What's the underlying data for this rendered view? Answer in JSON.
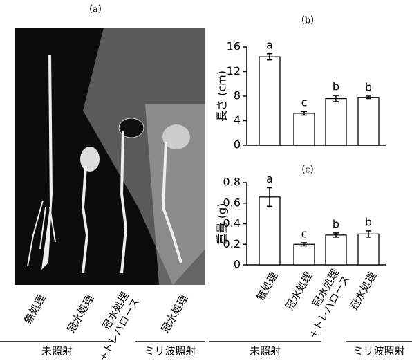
{
  "panel_a": {
    "label": "（a）",
    "lanes": [
      "無処理",
      "冠水処理",
      "冠水処理+トレハロース",
      "冠水処理"
    ],
    "groups": [
      "未照射",
      "ミリ波照射"
    ]
  },
  "chart_data": [
    {
      "type": "bar",
      "title": "（b）",
      "ylabel": "長さ (cm)",
      "categories": [
        "無処理",
        "冠水処理",
        "冠水処理+トレハロース",
        "冠水処理"
      ],
      "values": [
        14.4,
        5.2,
        7.6,
        7.8
      ],
      "errors": [
        0.5,
        0.3,
        0.5,
        0.2
      ],
      "letters": [
        "a",
        "c",
        "b",
        "b"
      ],
      "color": "#ffffff",
      "ylim": [
        0,
        16
      ],
      "yticks": [
        0,
        4,
        8,
        12,
        16
      ],
      "show_categories": false
    },
    {
      "type": "bar",
      "title": "（c）",
      "ylabel": "重量 (g)",
      "categories": [
        "無処理",
        "冠水処理",
        "冠水処理+トレハロース",
        "冠水処理"
      ],
      "values": [
        0.66,
        0.2,
        0.29,
        0.3
      ],
      "errors": [
        0.09,
        0.015,
        0.02,
        0.03
      ],
      "letters": [
        "a",
        "c",
        "b",
        "b"
      ],
      "color": "#ffffff",
      "ylim": [
        0,
        0.8
      ],
      "yticks": [
        0,
        0.2,
        0.4,
        0.6,
        0.8
      ],
      "show_categories": true,
      "groups": [
        "未照射",
        "ミリ波照射"
      ]
    }
  ]
}
